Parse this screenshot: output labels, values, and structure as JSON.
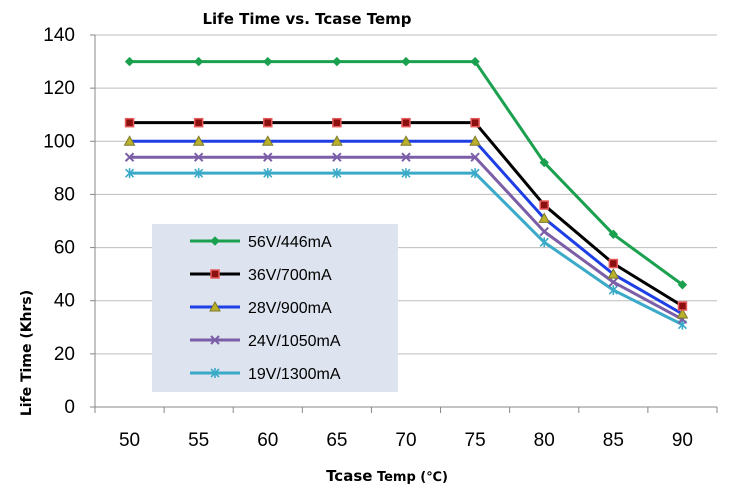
{
  "chart_data": {
    "type": "line",
    "title": "Life Time vs. Tcase Temp",
    "xlabel_main": "Tcase",
    "xlabel_rest": " Temp (℃)",
    "ylabel": "Life Time (Khrs)",
    "x": [
      50,
      55,
      60,
      65,
      70,
      75,
      80,
      85,
      90
    ],
    "xlim": [
      47.5,
      92.5
    ],
    "ylim": [
      0,
      140
    ],
    "yticks": [
      0,
      20,
      40,
      60,
      80,
      100,
      120,
      140
    ],
    "grid": true,
    "legend_position": "lower-left",
    "series": [
      {
        "name": "56V/446mA",
        "color": "#1aa04e",
        "marker": "diamond",
        "values": [
          130,
          130,
          130,
          130,
          130,
          130,
          92,
          65,
          46
        ]
      },
      {
        "name": "36V/700mA",
        "color": "#000000",
        "marker": "square",
        "values": [
          107,
          107,
          107,
          107,
          107,
          107,
          76,
          54,
          38
        ]
      },
      {
        "name": "28V/900mA",
        "color": "#1f3fe6",
        "marker": "triangle",
        "values": [
          100,
          100,
          100,
          100,
          100,
          100,
          71,
          50,
          35
        ]
      },
      {
        "name": "24V/1050mA",
        "color": "#7b5ea7",
        "marker": "x",
        "values": [
          94,
          94,
          94,
          94,
          94,
          94,
          66,
          47,
          33
        ]
      },
      {
        "name": "19V/1300mA",
        "color": "#3aaac8",
        "marker": "star",
        "values": [
          88,
          88,
          88,
          88,
          88,
          88,
          62,
          44,
          31
        ]
      }
    ]
  }
}
